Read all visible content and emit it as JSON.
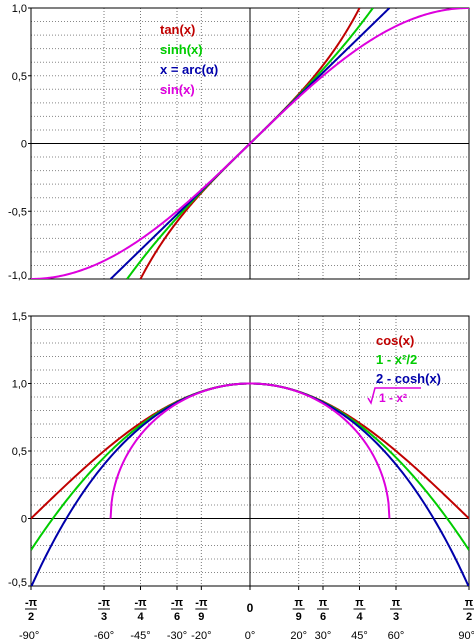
{
  "chart_data": [
    {
      "type": "line",
      "x_unit": "radian",
      "xlim": [
        -1.5708,
        1.5708
      ],
      "ylim": [
        -1.0,
        1.0
      ],
      "y_ticks": [
        {
          "v": 1.0,
          "label": "1,0"
        },
        {
          "v": 0.5,
          "label": "0,5"
        },
        {
          "v": 0.0,
          "label": "0"
        },
        {
          "v": -0.5,
          "label": "-0,5"
        },
        {
          "v": -1.0,
          "label": "-1,0"
        }
      ],
      "grid": true,
      "legend_position": "top-center",
      "series": [
        {
          "name": "tan(x)",
          "color": "#c00000",
          "fn": "tan",
          "x": [
            -0.7854,
            -0.6,
            -0.4,
            -0.2,
            0,
            0.2,
            0.4,
            0.6,
            0.7854
          ],
          "y": [
            -1.0,
            -0.684,
            -0.423,
            -0.203,
            0,
            0.203,
            0.423,
            0.684,
            1.0
          ]
        },
        {
          "name": "sinh(x)",
          "color": "#00cc00",
          "fn": "sinh",
          "x": [
            -0.8814,
            -0.6,
            -0.3,
            0,
            0.3,
            0.6,
            0.8814
          ],
          "y": [
            -1.0,
            -0.637,
            -0.305,
            0,
            0.305,
            0.637,
            1.0
          ]
        },
        {
          "name": "x = arc(α)",
          "color": "#0000aa",
          "fn": "identity",
          "x": [
            -1.0,
            0,
            1.0
          ],
          "y": [
            -1.0,
            0,
            1.0
          ]
        },
        {
          "name": "sin(x)",
          "color": "#dd00dd",
          "fn": "sin",
          "x": [
            -1.5708,
            -1.0472,
            -0.5236,
            0,
            0.5236,
            1.0472,
            1.5708
          ],
          "y": [
            -1.0,
            -0.866,
            -0.5,
            0,
            0.5,
            0.866,
            1.0
          ]
        }
      ]
    },
    {
      "type": "line",
      "x_unit": "radian",
      "xlim": [
        -1.5708,
        1.5708
      ],
      "ylim": [
        -0.5,
        1.5
      ],
      "y_ticks": [
        {
          "v": 1.5,
          "label": "1,5"
        },
        {
          "v": 1.0,
          "label": "1,0"
        },
        {
          "v": 0.5,
          "label": "0,5"
        },
        {
          "v": 0.0,
          "label": "0"
        },
        {
          "v": -0.5,
          "label": "-0,5"
        }
      ],
      "grid": true,
      "legend_position": "right",
      "x_ticks": [
        {
          "v": -1.5708,
          "num": "-π",
          "den": "2",
          "deg": "-90°"
        },
        {
          "v": -1.0472,
          "num": "-π",
          "den": "3",
          "deg": "-60°"
        },
        {
          "v": -0.7854,
          "num": "-π",
          "den": "4",
          "deg": "-45°"
        },
        {
          "v": -0.5236,
          "num": "-π",
          "den": "6",
          "deg": "-30°"
        },
        {
          "v": -0.3491,
          "num": "-π",
          "den": "9",
          "deg": "-20°"
        },
        {
          "v": 0,
          "num": "0",
          "den": "",
          "deg": "0°"
        },
        {
          "v": 0.3491,
          "num": "π",
          "den": "9",
          "deg": "20°"
        },
        {
          "v": 0.5236,
          "num": "π",
          "den": "6",
          "deg": "30°"
        },
        {
          "v": 0.7854,
          "num": "π",
          "den": "4",
          "deg": "45°"
        },
        {
          "v": 1.0472,
          "num": "π",
          "den": "3",
          "deg": "60°"
        },
        {
          "v": 1.5708,
          "num": "π",
          "den": "2",
          "deg": "90°"
        }
      ],
      "series": [
        {
          "name": "cos(x)",
          "color": "#c00000",
          "fn": "cos",
          "x": [
            -1.5708,
            -1.0472,
            -0.5236,
            0,
            0.5236,
            1.0472,
            1.5708
          ],
          "y": [
            0,
            0.5,
            0.866,
            1.0,
            0.866,
            0.5,
            0
          ]
        },
        {
          "name": "1 - x²/2",
          "color": "#00cc00",
          "fn": "parabola",
          "x": [
            -1.5708,
            -1.0,
            -0.5,
            0,
            0.5,
            1.0,
            1.5708
          ],
          "y": [
            -0.234,
            0.5,
            0.875,
            1.0,
            0.875,
            0.5,
            -0.234
          ]
        },
        {
          "name": "2 - cosh(x)",
          "color": "#0000aa",
          "fn": "twominuscosh",
          "x": [
            -1.5708,
            -1.0,
            -0.5,
            0,
            0.5,
            1.0,
            1.5708
          ],
          "y": [
            -0.51,
            0.457,
            0.872,
            1.0,
            0.872,
            0.457,
            -0.51
          ]
        },
        {
          "name": "1 - x²",
          "color": "#dd00dd",
          "fn": "sqrt",
          "radical": true,
          "x": [
            -1.0,
            -0.8,
            -0.5,
            0,
            0.5,
            0.8,
            1.0
          ],
          "y": [
            0,
            0.6,
            0.866,
            1.0,
            0.866,
            0.6,
            0
          ]
        }
      ]
    }
  ]
}
